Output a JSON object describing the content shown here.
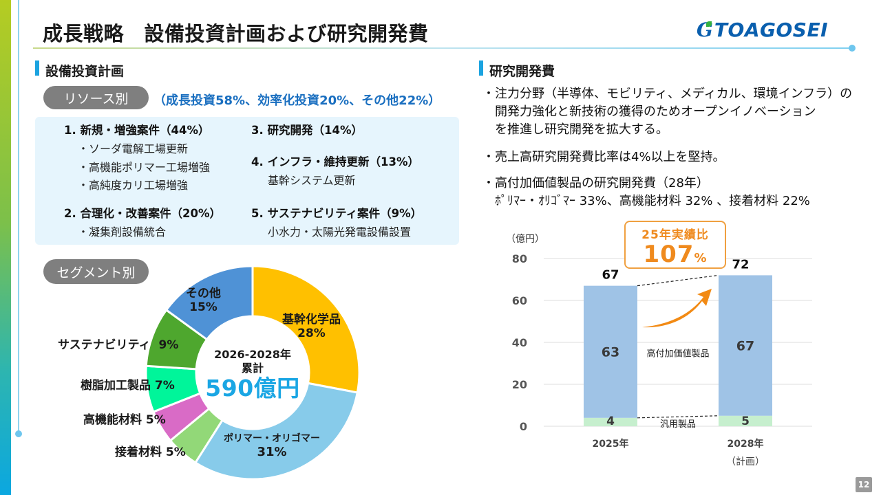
{
  "header": {
    "title": "成長戦略　設備投資計画および研究開発費",
    "logo_text": "TOAGOSEI",
    "logo_mark": "G"
  },
  "capex": {
    "section_title": "設備投資計画",
    "resource_pill": "リソース別",
    "resource_summary": "（成長投資58%、効率化投資20%、その他22%）",
    "items": [
      {
        "head": "1. 新規・増強案件（44%）",
        "subs": [
          "・ソーダ電解工場更新",
          "・高機能ポリマー工場増強",
          "・高純度カリ工場増強"
        ]
      },
      {
        "head": "2. 合理化・改善案件（20%）",
        "subs": [
          "・凝集剤設備統合"
        ]
      },
      {
        "head": "3. 研究開発（14%）",
        "subs": []
      },
      {
        "head": "4. インフラ・維持更新（13%）",
        "subs": [
          "基幹システム更新"
        ]
      },
      {
        "head": "5. サステナビリティ案件（9%）",
        "subs": [
          "小水力・太陽光発電設備設置"
        ]
      }
    ],
    "segment_pill": "セグメント別",
    "donut_center": {
      "line1": "2026-2028年",
      "line2": "累計",
      "total": "590億円"
    }
  },
  "rd": {
    "section_title": "研究開発費",
    "bullets": [
      [
        "・注力分野（半導体、モビリティ、メディカル、環境インフラ）の",
        "　開発力強化と新技術の獲得のためオープンイノベーション",
        "　を推進し研究開発を拡大する。"
      ],
      [
        "・売上高研究開発費比率は4%以上を堅持。"
      ],
      [
        "・高付加価値製品の研究開発費（28年）",
        "　ﾎﾟﾘﾏｰ・ｵﾘｺﾞﾏｰ 33%、高機能材料 32% 、接着材料 22%"
      ]
    ],
    "unit_label": "（億円）",
    "callout": {
      "line1": "25年実績比",
      "value": "107",
      "unit": "%"
    }
  },
  "colors": {
    "accent_blue": "#1ba3e0",
    "summary_blue": "#1a6fc0",
    "orange": "#ef8a1e",
    "bar_high_value": "#9fc3e6",
    "bar_general": "#c6efce"
  },
  "chart_data": [
    {
      "type": "pie",
      "variant": "donut",
      "title": "セグメント別",
      "center_text": [
        "2026-2028年",
        "累計",
        "590億円"
      ],
      "total": 590,
      "unit": "億円",
      "start": "12 o'clock, clockwise",
      "slices": [
        {
          "label": "基幹化学品",
          "value": 28,
          "display": "28%",
          "color": "#ffc000"
        },
        {
          "label": "ポリマー・オリゴマー",
          "value": 31,
          "display": "31%",
          "color": "#87cbea"
        },
        {
          "label": "接着材料",
          "value": 5,
          "display": "5%",
          "color": "#92d878"
        },
        {
          "label": "高機能材料",
          "value": 5,
          "display": "5%",
          "color": "#d96bc6"
        },
        {
          "label": "樹脂加工製品",
          "value": 7,
          "display": "7%",
          "color": "#00f59a"
        },
        {
          "label": "サステナビリティ",
          "value": 9,
          "display": "9%",
          "color": "#4ea72e"
        },
        {
          "label": "その他",
          "value": 15,
          "display": "15%",
          "color": "#4f92d6"
        }
      ]
    },
    {
      "type": "bar",
      "stacked": true,
      "title": "研究開発費",
      "ylabel": "（億円）",
      "ylim": [
        0,
        80
      ],
      "yticks": [
        0,
        20,
        40,
        60,
        80
      ],
      "grid": true,
      "categories": [
        "2025年",
        "2028年"
      ],
      "category_sublabels": [
        "",
        "（計画）"
      ],
      "series": [
        {
          "name": "汎用製品",
          "values": [
            4,
            5
          ],
          "color": "#c6efce"
        },
        {
          "name": "高付加価値製品",
          "values": [
            63,
            67
          ],
          "color": "#9fc3e6"
        }
      ],
      "totals": [
        67,
        72
      ],
      "annotation": {
        "text": "25年実績比 107%",
        "type": "growth-arrow"
      }
    }
  ],
  "page_number": "12"
}
